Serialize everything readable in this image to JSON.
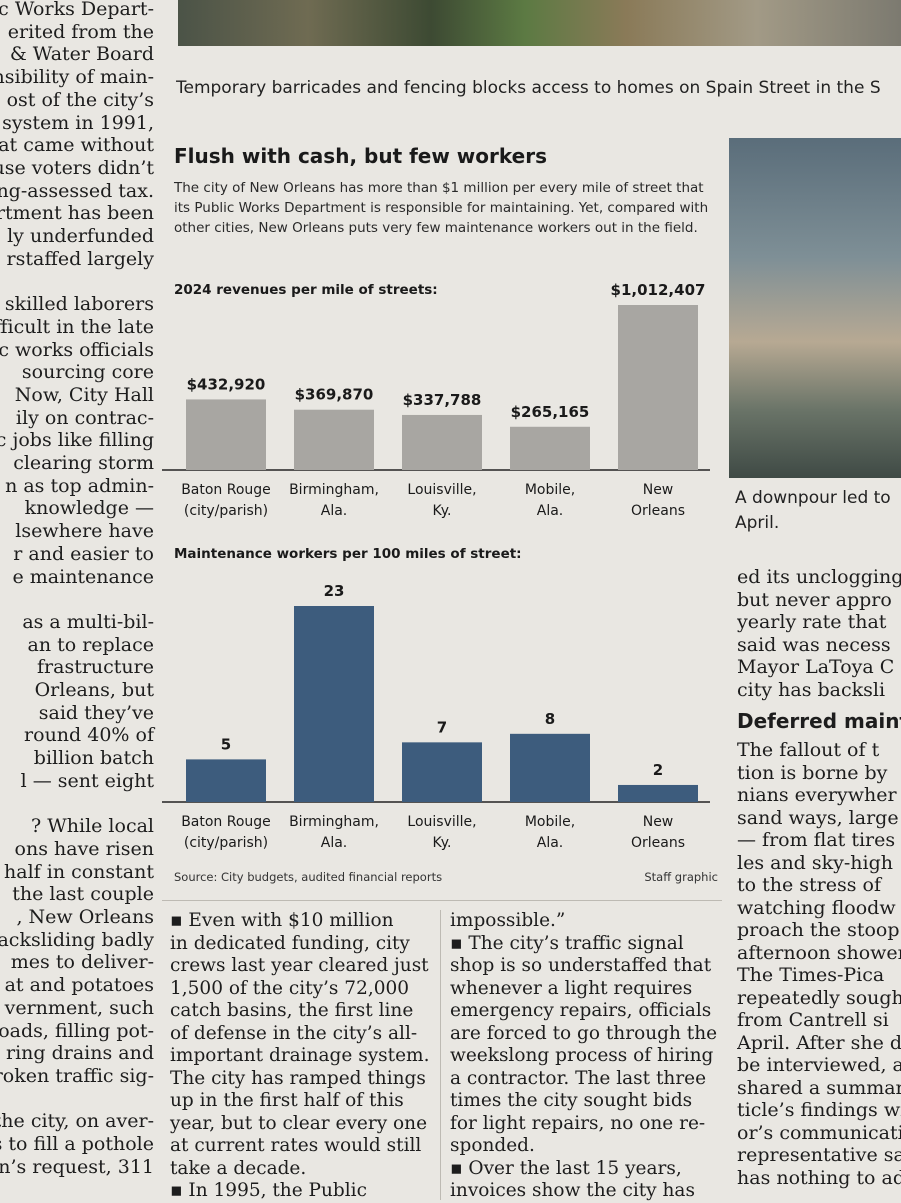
{
  "left_column": {
    "lines": [
      "lic Works Depart-",
      "erited from the",
      " & Water Board",
      "nsibility of main-",
      "ost of the city’s",
      " system in 1991,",
      "at came without",
      "ause voters didn’t",
      "ng-assessed tax.",
      "rtment has been",
      "ly underfunded",
      "rstaffed largely",
      "",
      "g skilled laborers",
      "ifficult in the late",
      "ic works officials",
      "sourcing core",
      "Now, City Hall",
      "ily on contrac-",
      "c jobs like filling",
      " clearing storm",
      "n as top admin-",
      "knowledge —",
      "lsewhere have",
      "r and easier to",
      "e maintenance",
      "",
      "as a multi-bil-",
      "an to replace",
      "frastructure",
      "Orleans, but",
      " said they’ve",
      "round 40% of",
      "billion batch",
      "l — sent eight",
      "",
      "? While local",
      "ons have risen",
      "half in constant",
      " the last couple",
      ", New Orleans",
      "acksliding badly",
      "mes to deliver-",
      "at and potatoes",
      "vernment, such",
      "oads, filling pot-",
      "ring drains and",
      "roken traffic sig-",
      "",
      "the city, on aver-",
      "s to fill a pothole",
      "en’s request, 311"
    ]
  },
  "photo_top_caption": "Temporary barricades and fencing blocks access to homes on Spain Street in the S",
  "graphic": {
    "title": "Flush with cash, but few workers",
    "intro": "The city of New Orleans has more than $1 million per every mile of street that its Public Works Department is responsible for maintaining. Yet, compared with other cities, New Orleans puts very few maintenance workers out in the field.",
    "source": "Source: City budgets, audited financial reports",
    "credit": "Staff graphic",
    "colors": {
      "revenue_bar": "#a8a6a2",
      "workers_bar": "#3d5c7d",
      "baseline": "#222222"
    }
  },
  "chart_data": [
    {
      "type": "bar",
      "title": "2024 revenues per mile of streets:",
      "categories": [
        [
          "Baton Rouge",
          "(city/parish)"
        ],
        [
          "Birmingham,",
          "Ala."
        ],
        [
          "Louisville,",
          "Ky."
        ],
        [
          "Mobile,",
          "Ala."
        ],
        [
          "New",
          "Orleans"
        ]
      ],
      "values": [
        432920,
        369870,
        337788,
        265165,
        1012407
      ],
      "labels": [
        "$432,920",
        "$369,870",
        "$337,788",
        "$265,165",
        "$1,012,407"
      ],
      "ylim": [
        0,
        1012407
      ]
    },
    {
      "type": "bar",
      "title": "Maintenance workers per 100 miles of street:",
      "categories": [
        [
          "Baton Rouge",
          "(city/parish)"
        ],
        [
          "Birmingham,",
          "Ala."
        ],
        [
          "Louisville,",
          "Ky."
        ],
        [
          "Mobile,",
          "Ala."
        ],
        [
          "New",
          "Orleans"
        ]
      ],
      "values": [
        5,
        23,
        7,
        8,
        2
      ],
      "labels": [
        "5",
        "23",
        "7",
        "8",
        "2"
      ],
      "ylim": [
        0,
        23
      ]
    }
  ],
  "right_photo_caption": [
    "A downpour led to",
    "April."
  ],
  "right_column": {
    "lines_a": [
      "ed its unclogging",
      "but never appro",
      "yearly rate that",
      "said was necess",
      "Mayor LaToya C",
      "city has backsli"
    ],
    "heading": "Deferred maint",
    "lines_b": [
      "The fallout of t",
      "tion is borne by",
      "nians everywher",
      "sand ways, large",
      "— from flat tires",
      "les and sky-high",
      "to the stress of",
      "watching floodw",
      "proach the stoop i",
      "afternoon shower",
      "The Times-Pica",
      "repeatedly sought",
      "from Cantrell si",
      "April. After she d",
      "be interviewed, a",
      "shared a summary",
      "ticle’s findings with",
      "or’s communicatio",
      "representative sai",
      "has nothing to ad"
    ]
  },
  "mid_columns": {
    "col1": [
      "▪ Even with $10 million",
      "in dedicated funding, city",
      "crews last year cleared just",
      "1,500 of the city’s 72,000",
      "catch basins, the first line",
      "of defense in the city’s all-",
      "important drainage system.",
      "The city has ramped things",
      "up in the first half of this",
      "year, but to clear every one",
      "at current rates would still",
      "take a decade.",
      "▪ In 1995, the Public"
    ],
    "col2": [
      "impossible.”",
      "▪ The city’s traffic signal",
      "shop is so understaffed that",
      "whenever a light requires",
      "emergency repairs, officials",
      "are forced to go through the",
      "weekslong process of hiring",
      "a contractor. The last three",
      "times the city sought bids",
      "for light repairs, no one re-",
      "sponded.",
      "▪ Over the last 15 years,",
      "invoices show the city has"
    ]
  }
}
